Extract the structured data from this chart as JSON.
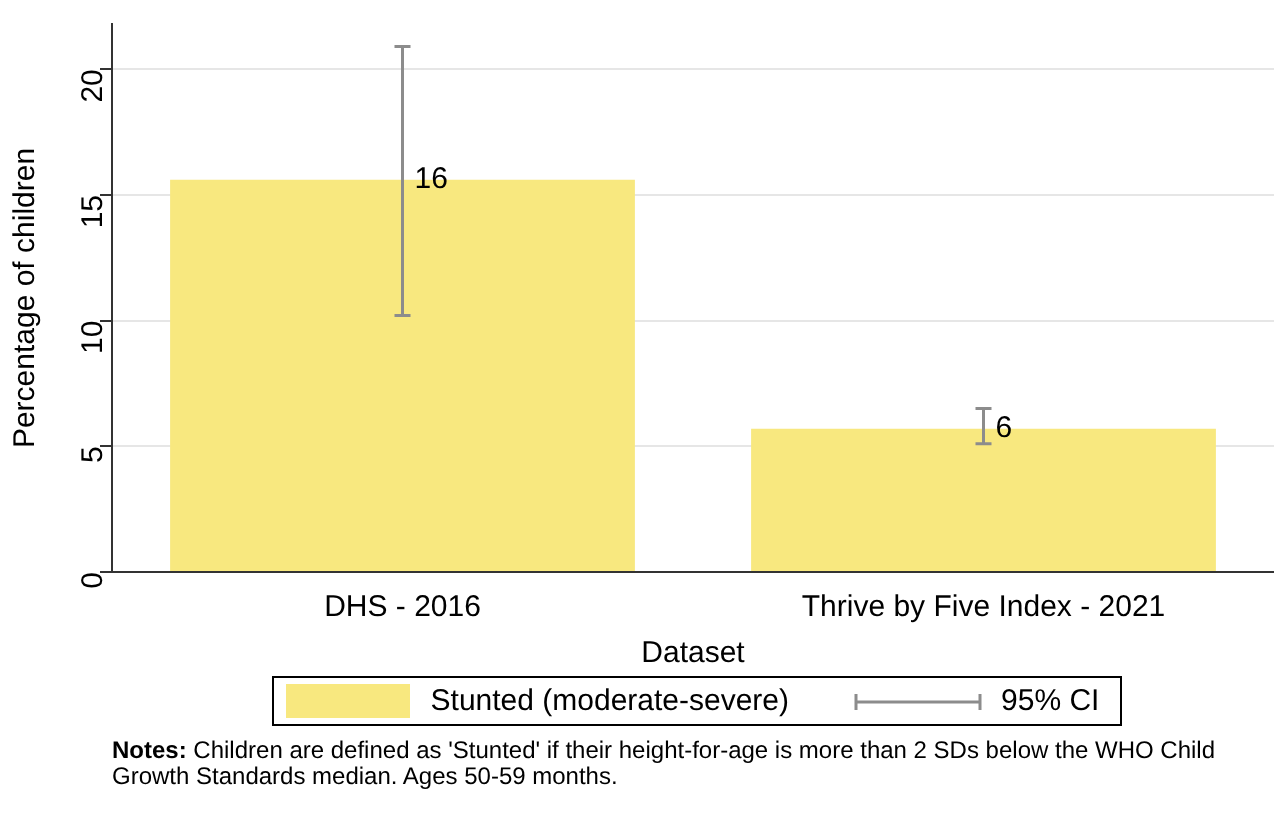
{
  "chart_data": {
    "type": "bar",
    "xlabel": "Dataset",
    "ylabel": "Percentage of children",
    "categories": [
      "DHS - 2016",
      "Thrive by Five Index - 2021"
    ],
    "series": [
      {
        "name": "Stunted (moderate-severe)",
        "color": "#f8e87f",
        "values": [
          15.6,
          5.7
        ],
        "errors": [
          [
            10.2,
            20.9
          ],
          [
            5.1,
            6.5
          ]
        ],
        "value_labels": [
          "16",
          "6"
        ]
      }
    ],
    "ylim": [
      0,
      21.8
    ],
    "yticks": [
      0,
      5,
      10,
      15,
      20
    ],
    "grid": "y",
    "legend": "bottom",
    "annotations": [
      "95% CI",
      "Notes: Children are defined as 'Stunted' if their height-for-age is more than 2 SDs below the WHO Child Growth Standards median. Ages 50-59 months."
    ]
  }
}
